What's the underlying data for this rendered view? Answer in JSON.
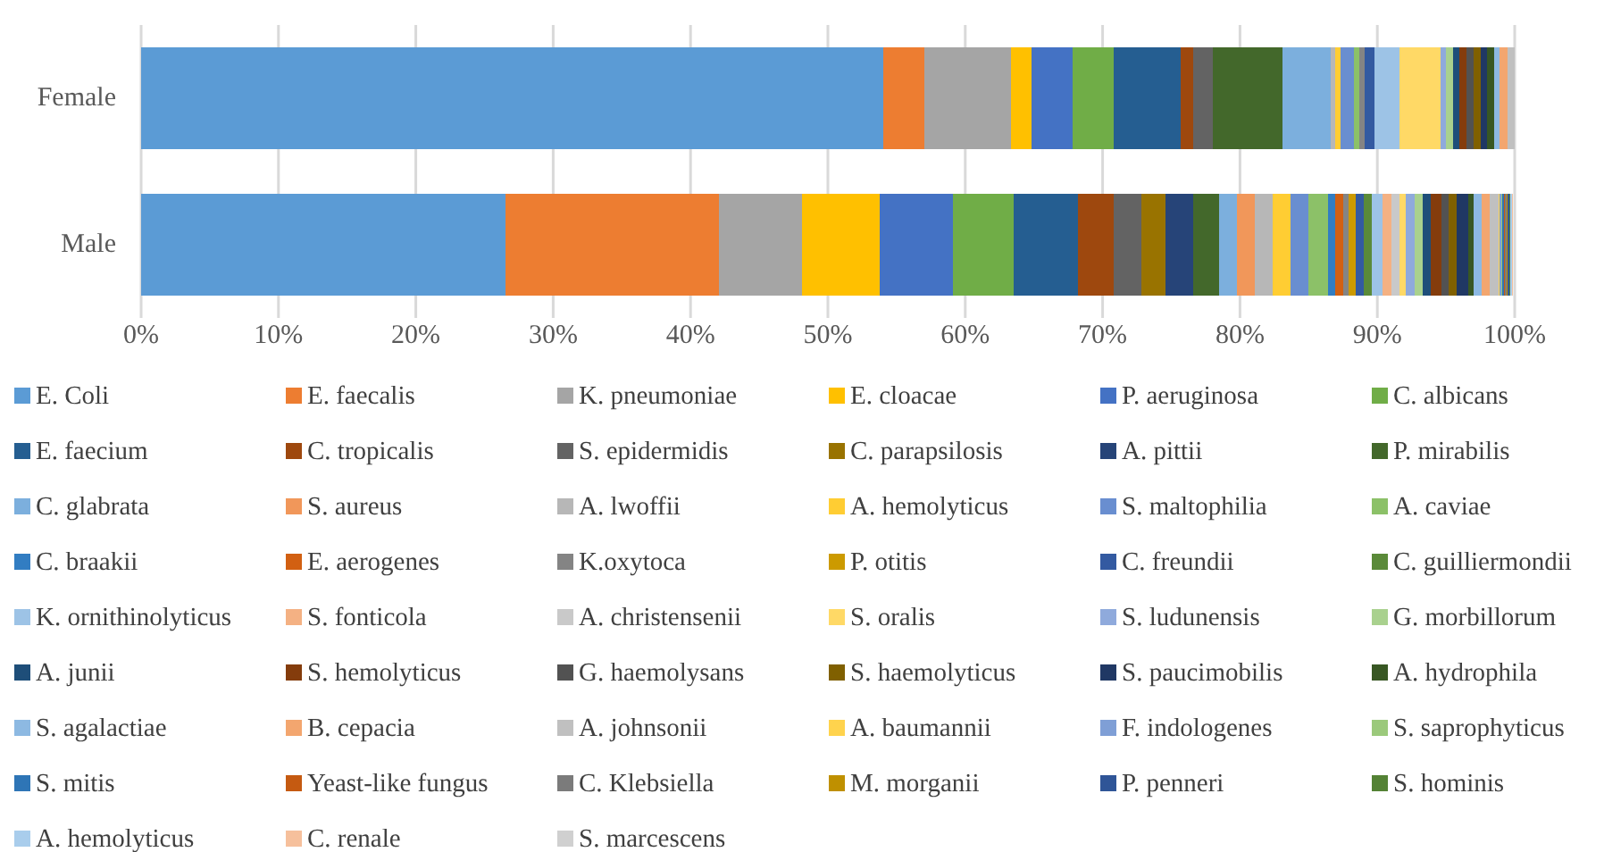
{
  "chart_data": {
    "type": "bar",
    "orientation": "horizontal",
    "stacked": true,
    "grid": "x",
    "legend": "bottom",
    "categories": [
      "Female",
      "Male"
    ],
    "xlim": [
      0,
      100
    ],
    "xticks": [
      {
        "value": 0,
        "label": "0%"
      },
      {
        "value": 10,
        "label": "10%"
      },
      {
        "value": 20,
        "label": "20%"
      },
      {
        "value": 30,
        "label": "30%"
      },
      {
        "value": 40,
        "label": "40%"
      },
      {
        "value": 50,
        "label": "50%"
      },
      {
        "value": 60,
        "label": "60%"
      },
      {
        "value": 70,
        "label": "70%"
      },
      {
        "value": 80,
        "label": "80%"
      },
      {
        "value": 90,
        "label": "90%"
      },
      {
        "value": 100,
        "label": "100%"
      }
    ],
    "series": [
      {
        "name": "E. Coli",
        "color": "#5b9bd5",
        "values": [
          54.0,
          26.5
        ]
      },
      {
        "name": "E. faecalis",
        "color": "#ed7d31",
        "values": [
          3.0,
          15.6
        ]
      },
      {
        "name": "K. pneumoniae",
        "color": "#a5a5a5",
        "values": [
          6.3,
          6.0
        ]
      },
      {
        "name": "E. cloacae",
        "color": "#ffc000",
        "values": [
          1.5,
          5.7
        ]
      },
      {
        "name": "P. aeruginosa",
        "color": "#4472c4",
        "values": [
          3.0,
          5.3
        ]
      },
      {
        "name": "C. albicans",
        "color": "#70ad47",
        "values": [
          3.0,
          4.4
        ]
      },
      {
        "name": "E. faecium",
        "color": "#255e91",
        "values": [
          4.9,
          4.7
        ]
      },
      {
        "name": "C. tropicalis",
        "color": "#9e480e",
        "values": [
          0.9,
          2.6
        ]
      },
      {
        "name": "S. epidermidis",
        "color": "#636363",
        "values": [
          1.4,
          2.0
        ]
      },
      {
        "name": "C. parapsilosis",
        "color": "#997300",
        "values": [
          0,
          1.8
        ]
      },
      {
        "name": "A. pittii",
        "color": "#264478",
        "values": [
          0,
          2.0
        ]
      },
      {
        "name": "P. mirabilis",
        "color": "#43682b",
        "values": [
          5.1,
          1.9
        ]
      },
      {
        "name": "C. glabrata",
        "color": "#7cafdd",
        "values": [
          3.5,
          1.3
        ]
      },
      {
        "name": "S. aureus",
        "color": "#f1975a",
        "values": [
          0,
          1.3
        ]
      },
      {
        "name": "A. lwoffii",
        "color": "#b7b7b7",
        "values": [
          0.3,
          1.3
        ]
      },
      {
        "name": "A. hemolyticus",
        "color": "#ffcd33",
        "values": [
          0.4,
          1.3
        ]
      },
      {
        "name": "S. maltophilia",
        "color": "#698ed0",
        "values": [
          1.0,
          1.3
        ]
      },
      {
        "name": "A. caviae",
        "color": "#8cc168",
        "values": [
          0.4,
          1.4
        ]
      },
      {
        "name": "C. braakii",
        "color": "#327dc2",
        "values": [
          0,
          0.5
        ]
      },
      {
        "name": "E. aerogenes",
        "color": "#d26012",
        "values": [
          0,
          0.6
        ]
      },
      {
        "name": "K.oxytoca",
        "color": "#848484",
        "values": [
          0.4,
          0.4
        ]
      },
      {
        "name": "P. otitis",
        "color": "#cc9a00",
        "values": [
          0,
          0.5
        ]
      },
      {
        "name": "C. freundii",
        "color": "#335aa1",
        "values": [
          0.7,
          0.6
        ]
      },
      {
        "name": "C. guilliermondii",
        "color": "#5a8a39",
        "values": [
          0,
          0.6
        ]
      },
      {
        "name": "K. ornithinolyticus",
        "color": "#9dc3e6",
        "values": [
          1.8,
          0.8
        ]
      },
      {
        "name": "S. fonticola",
        "color": "#f4b183",
        "values": [
          0,
          0.6
        ]
      },
      {
        "name": "A. christensenii",
        "color": "#c9c9c9",
        "values": [
          0,
          0.6
        ]
      },
      {
        "name": "S. oralis",
        "color": "#ffd966",
        "values": [
          3.0,
          0.5
        ]
      },
      {
        "name": "S. ludunensis",
        "color": "#8faadc",
        "values": [
          0.4,
          0.6
        ]
      },
      {
        "name": "G. morbillorum",
        "color": "#a9d18e",
        "values": [
          0.5,
          0.6
        ]
      },
      {
        "name": "A. junii",
        "color": "#1e4e79",
        "values": [
          0.5,
          0.6
        ]
      },
      {
        "name": "S. hemolyticus",
        "color": "#843c0c",
        "values": [
          0.5,
          0.8
        ]
      },
      {
        "name": "G. haemolysans",
        "color": "#525252",
        "values": [
          0.5,
          0.5
        ]
      },
      {
        "name": "S. haemolyticus",
        "color": "#806000",
        "values": [
          0.5,
          0.6
        ]
      },
      {
        "name": "S. paucimobilis",
        "color": "#203864",
        "values": [
          0.5,
          0.8
        ]
      },
      {
        "name": "A. hydrophila",
        "color": "#385723",
        "values": [
          0.5,
          0.4
        ]
      },
      {
        "name": "S. agalactiae",
        "color": "#8db9e2",
        "values": [
          0.4,
          0.6
        ]
      },
      {
        "name": "B. cepacia",
        "color": "#f3a66f",
        "values": [
          0.6,
          0.6
        ]
      },
      {
        "name": "A. johnsonii",
        "color": "#c0c0c0",
        "values": [
          0.5,
          0.6
        ]
      },
      {
        "name": "A. baumannii",
        "color": "#ffd34d",
        "values": [
          0,
          0.1
        ]
      },
      {
        "name": "F. indologenes",
        "color": "#7f9fd6",
        "values": [
          0,
          0.1
        ]
      },
      {
        "name": "S. saprophyticus",
        "color": "#9bc97b",
        "values": [
          0,
          0.1
        ]
      },
      {
        "name": "S. mitis",
        "color": "#2e75b6",
        "values": [
          0,
          0.1
        ]
      },
      {
        "name": "Yeast-like fungus",
        "color": "#c55a11",
        "values": [
          0,
          0.1
        ]
      },
      {
        "name": "C. Klebsiella",
        "color": "#7b7b7b",
        "values": [
          0,
          0.1
        ]
      },
      {
        "name": "M. morganii",
        "color": "#bf9000",
        "values": [
          0,
          0.1
        ]
      },
      {
        "name": "P. penneri",
        "color": "#2f5597",
        "values": [
          0,
          0.1
        ]
      },
      {
        "name": "S. hominis",
        "color": "#548235",
        "values": [
          0,
          0.1
        ]
      },
      {
        "name": "A. hemolyticus",
        "color": "#a9cdec",
        "values": [
          0,
          0.1
        ]
      },
      {
        "name": "C. renale",
        "color": "#f6c09c",
        "values": [
          0,
          0.1
        ]
      },
      {
        "name": "S. marcescens",
        "color": "#d0d0d0",
        "values": [
          0,
          0
        ]
      }
    ]
  }
}
